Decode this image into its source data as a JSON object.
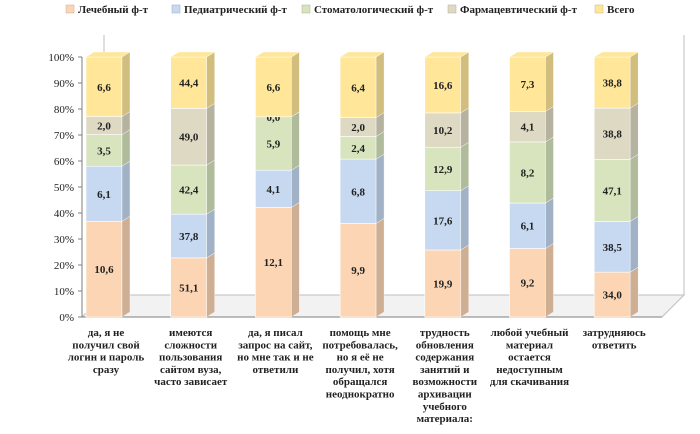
{
  "chart_data": {
    "type": "bar",
    "stacked": "percent",
    "ylim": [
      0,
      100
    ],
    "y_ticks": [
      "0%",
      "10%",
      "20%",
      "30%",
      "40%",
      "50%",
      "60%",
      "70%",
      "80%",
      "90%",
      "100%"
    ],
    "legend_placement": "top",
    "categories": [
      [
        "да, я не",
        "получил свой",
        "логин и пароль",
        "сразу"
      ],
      [
        "имеются",
        "сложности",
        "пользования",
        "сайтом вуза,",
        "часто зависает"
      ],
      [
        "да, я писал",
        "запрос на сайт,",
        "но мне так и не",
        "ответили"
      ],
      [
        "помощь мне",
        "потребовалась,",
        "но я её не",
        "получил, хотя",
        "обращался",
        "неоднократно"
      ],
      [
        "трудность",
        "обновления",
        "содержания",
        "занятий и",
        "возможности",
        "архивации",
        "учебного",
        "материала:"
      ],
      [
        "любой учебный",
        "материал",
        "остается",
        "недоступным",
        "для скачивания"
      ],
      [
        "затрудняюсь",
        "ответить"
      ]
    ],
    "series": [
      {
        "name": "Лечебный ф-т",
        "color": "#fcd5b5",
        "labels": [
          "10,6",
          "51,1",
          "12,1",
          "9,9",
          "19,9",
          "9,2",
          "34,0"
        ],
        "values": [
          10.6,
          51.1,
          12.1,
          9.9,
          19.9,
          9.2,
          34.0
        ]
      },
      {
        "name": "Педиатрический ф-т",
        "color": "#c6d9f1",
        "labels": [
          "6,1",
          "37,8",
          "4,1",
          "6,8",
          "17,6",
          "6,1",
          "38,5"
        ],
        "values": [
          6.1,
          37.8,
          4.1,
          6.8,
          17.6,
          6.1,
          38.5
        ]
      },
      {
        "name": "Стоматологический ф-т",
        "color": "#d7e4bd",
        "labels": [
          "3,5",
          "42,4",
          "5,9",
          "2,4",
          "12,9",
          "8,2",
          "47,1"
        ],
        "values": [
          3.5,
          42.4,
          5.9,
          2.4,
          12.9,
          8.2,
          47.1
        ]
      },
      {
        "name": "Фармацевтический ф-т",
        "color": "#ddd9c3",
        "labels": [
          "2,0",
          "49,0",
          "0,0",
          "2,0",
          "10,2",
          "4,1",
          "38,8"
        ],
        "values": [
          2.0,
          49.0,
          0.0,
          2.0,
          10.2,
          4.1,
          38.8
        ]
      },
      {
        "name": "Всего",
        "color": "#ffe699",
        "labels": [
          "6,6",
          "44,4",
          "6,6",
          "6,4",
          "16,6",
          "7,3",
          "38,8"
        ],
        "values": [
          6.6,
          44.4,
          6.6,
          6.4,
          16.6,
          7.3,
          38.8
        ]
      }
    ]
  }
}
